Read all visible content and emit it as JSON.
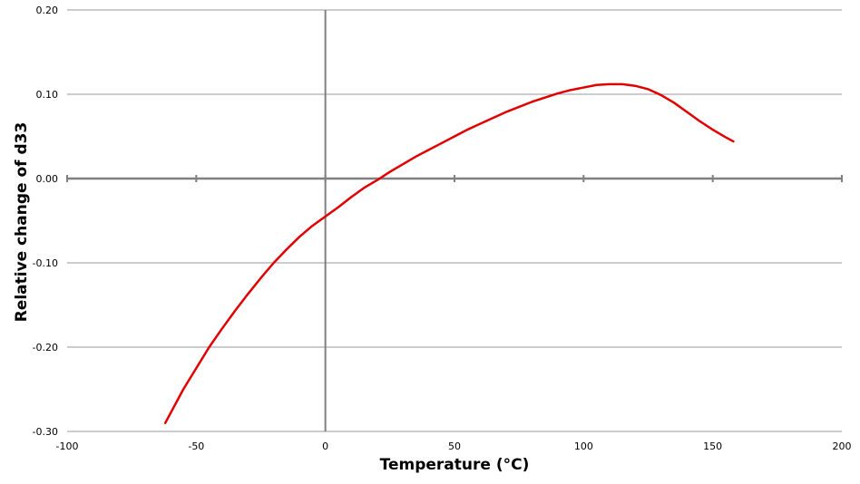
{
  "chart_data": {
    "type": "line",
    "title": "",
    "xlabel": "Temperature (°C)",
    "ylabel": "Relative change of d33",
    "xlim": [
      -100,
      200
    ],
    "ylim": [
      -0.3,
      0.2
    ],
    "x_ticks": [
      -100,
      -50,
      0,
      50,
      100,
      150,
      200
    ],
    "x_tick_labels": [
      "-100",
      "-50",
      "0",
      "50",
      "100",
      "150",
      "200"
    ],
    "y_ticks": [
      -0.3,
      -0.2,
      -0.1,
      0.0,
      0.1,
      0.2
    ],
    "y_tick_labels": [
      "-0.30",
      "-0.20",
      "-0.10",
      "0.00",
      "0.10",
      "0.20"
    ],
    "grid": "horizontal",
    "legend": "none",
    "series": [
      {
        "color": "#e00000",
        "x": [
          -62,
          -55,
          -50,
          -45,
          -40,
          -35,
          -30,
          -25,
          -20,
          -15,
          -10,
          -5,
          0,
          5,
          10,
          15,
          20,
          25,
          30,
          35,
          40,
          45,
          50,
          55,
          60,
          65,
          70,
          75,
          80,
          85,
          90,
          95,
          100,
          105,
          110,
          115,
          120,
          125,
          130,
          135,
          140,
          145,
          150,
          155,
          158
        ],
        "y": [
          -0.29,
          -0.25,
          -0.225,
          -0.2,
          -0.178,
          -0.157,
          -0.137,
          -0.118,
          -0.1,
          -0.084,
          -0.069,
          -0.056,
          -0.045,
          -0.034,
          -0.022,
          -0.011,
          -0.002,
          0.008,
          0.017,
          0.026,
          0.034,
          0.042,
          0.05,
          0.058,
          0.065,
          0.072,
          0.079,
          0.085,
          0.091,
          0.096,
          0.101,
          0.105,
          0.108,
          0.111,
          0.112,
          0.112,
          0.11,
          0.106,
          0.099,
          0.09,
          0.079,
          0.068,
          0.058,
          0.049,
          0.044
        ]
      }
    ]
  }
}
